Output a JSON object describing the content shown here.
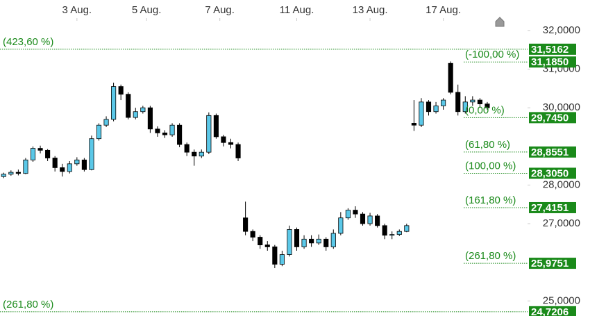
{
  "chart_data": {
    "type": "candlestick",
    "open": [
      28.22,
      28.28,
      28.33,
      28.3,
      28.65,
      28.95,
      28.9,
      28.7,
      28.45,
      28.35,
      28.55,
      28.65,
      28.4,
      29.2,
      29.55,
      29.7,
      30.55,
      30.35,
      29.75,
      29.9,
      30.0,
      29.45,
      29.35,
      29.3,
      29.55,
      29.05,
      28.85,
      28.75,
      28.85,
      29.8,
      29.25,
      29.1,
      29.05,
      27.15,
      26.8,
      26.65,
      26.45,
      26.4,
      25.95,
      26.2,
      26.85,
      26.4,
      26.6,
      26.5,
      26.6,
      26.4,
      26.75,
      27.15,
      27.35,
      27.25,
      27.0,
      27.2,
      26.95,
      26.7,
      26.72,
      26.8,
      29.6,
      29.55,
      30.15,
      29.9,
      30.05,
      31.15,
      30.4,
      29.9,
      30.15,
      30.2,
      30.1
    ],
    "high": [
      28.32,
      28.38,
      28.4,
      28.7,
      29.0,
      29.02,
      28.93,
      28.75,
      28.55,
      28.62,
      28.72,
      28.7,
      29.28,
      29.6,
      29.78,
      30.65,
      30.6,
      30.4,
      30.0,
      30.05,
      30.05,
      29.52,
      29.42,
      29.6,
      29.6,
      29.1,
      28.92,
      28.92,
      29.88,
      29.85,
      29.3,
      29.2,
      29.1,
      27.57,
      26.85,
      26.7,
      26.55,
      26.45,
      26.3,
      26.95,
      26.9,
      26.7,
      26.7,
      26.72,
      26.65,
      26.85,
      27.3,
      27.4,
      27.45,
      27.3,
      27.28,
      27.25,
      27.0,
      26.8,
      26.85,
      27.0,
      30.2,
      30.25,
      30.2,
      30.15,
      30.25,
      31.2,
      30.6,
      30.3,
      30.3,
      30.25,
      30.15
    ],
    "low": [
      28.18,
      28.24,
      28.25,
      28.28,
      28.6,
      28.82,
      28.62,
      28.35,
      28.22,
      28.3,
      28.5,
      28.35,
      28.38,
      29.15,
      29.5,
      29.65,
      30.2,
      29.7,
      29.7,
      29.85,
      29.35,
      29.25,
      29.22,
      29.25,
      28.98,
      28.75,
      28.5,
      28.7,
      28.8,
      29.2,
      29.0,
      28.95,
      28.62,
      26.7,
      26.55,
      26.35,
      26.3,
      25.85,
      25.9,
      26.15,
      26.3,
      26.35,
      26.4,
      26.45,
      26.3,
      26.35,
      26.7,
      27.1,
      27.15,
      26.95,
      26.95,
      26.9,
      26.6,
      26.6,
      26.68,
      26.78,
      29.4,
      29.5,
      29.8,
      29.85,
      29.95,
      30.35,
      29.8,
      29.85,
      30.05,
      30.0,
      29.95
    ],
    "close": [
      28.28,
      28.33,
      28.3,
      28.65,
      28.95,
      28.9,
      28.7,
      28.45,
      28.35,
      28.55,
      28.65,
      28.4,
      29.2,
      29.55,
      29.7,
      30.55,
      30.35,
      29.75,
      29.9,
      30.0,
      29.45,
      29.35,
      29.3,
      29.55,
      29.05,
      28.85,
      28.75,
      28.85,
      29.8,
      29.25,
      29.1,
      29.05,
      28.7,
      26.8,
      26.65,
      26.45,
      26.4,
      25.95,
      26.2,
      26.85,
      26.4,
      26.6,
      26.5,
      26.6,
      26.4,
      26.75,
      27.15,
      27.35,
      27.25,
      27.0,
      27.2,
      26.95,
      26.7,
      26.72,
      26.8,
      26.95,
      29.55,
      30.15,
      29.9,
      30.05,
      30.2,
      30.4,
      29.9,
      30.15,
      30.2,
      30.1,
      30.0
    ],
    "up_color": "#5bc8e8",
    "down_color": "#000000",
    "xlim": [
      -0.5,
      71.5
    ],
    "xticks": [
      {
        "value": 10,
        "label": "3 Aug."
      },
      {
        "value": 19.5,
        "label": "5 Aug."
      },
      {
        "value": 29.5,
        "label": "7 Aug."
      },
      {
        "value": 40,
        "label": "11 Aug."
      },
      {
        "value": 50,
        "label": "13 Aug."
      },
      {
        "value": 60,
        "label": "17 Aug."
      }
    ],
    "ylim": [
      24.61,
      32.79
    ],
    "yticks": [
      {
        "value": 32,
        "label": "32,0000"
      },
      {
        "value": 31,
        "label": "31,0000"
      },
      {
        "value": 30,
        "label": "30,0000"
      },
      {
        "value": 28,
        "label": "28,0000"
      },
      {
        "value": 27,
        "label": "27,0000"
      },
      {
        "value": 25,
        "label": "25,0000"
      }
    ],
    "level_color": "#1a8a1a",
    "levels": [
      {
        "label": "(423,60 %)",
        "value": 31.5162,
        "value_label": "31,5162",
        "side": "left"
      },
      {
        "label": "(-100,00 %)",
        "value": 31.185,
        "value_label": "31,1850",
        "side": "right"
      },
      {
        "label": "(0,00 %)",
        "value": 29.745,
        "value_label": "29,7450",
        "side": "right"
      },
      {
        "label": "(61,80 %)",
        "value": 28.8551,
        "value_label": "28,8551",
        "side": "right"
      },
      {
        "label": "(100,00 %)",
        "value": 28.305,
        "value_label": "28,3050",
        "side": "right"
      },
      {
        "label": "(161,80 %)",
        "value": 27.4151,
        "value_label": "27,4151",
        "side": "right"
      },
      {
        "label": "(261,80 %)",
        "value": 25.9751,
        "value_label": "25,9751",
        "side": "right"
      },
      {
        "label": "(261,80 %)",
        "value": 24.7206,
        "value_label": "24,7206",
        "side": "left"
      }
    ]
  }
}
